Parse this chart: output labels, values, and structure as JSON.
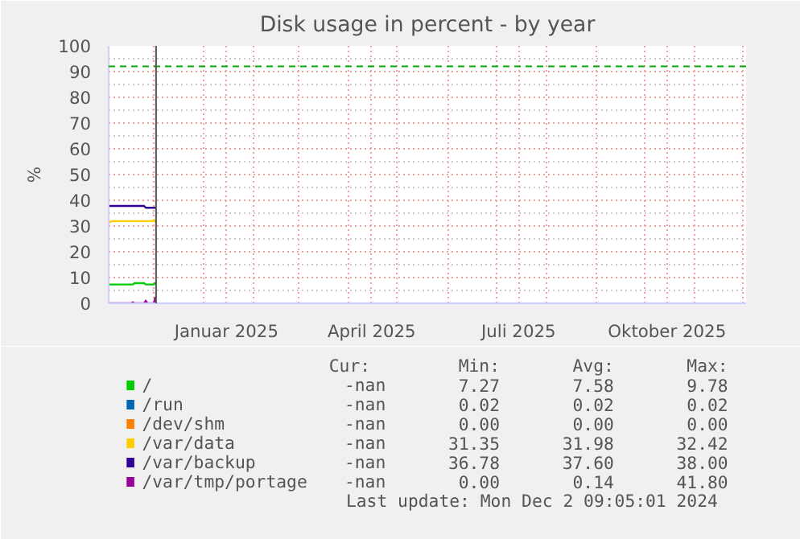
{
  "chart_data": {
    "type": "line",
    "title": "Disk usage in percent - by year",
    "ylabel": "%",
    "xlim": [
      "2024-11-03",
      "2025-12-03"
    ],
    "xticks": [
      {
        "value": "2024-12-01",
        "label": null
      },
      {
        "value": "2025-01-01",
        "label": null
      },
      {
        "value": "2025-01-15",
        "label": "Januar 2025"
      },
      {
        "value": "2025-02-01",
        "label": null
      },
      {
        "value": "2025-03-01",
        "label": null
      },
      {
        "value": "2025-04-01",
        "label": null
      },
      {
        "value": "2025-04-15",
        "label": "April 2025"
      },
      {
        "value": "2025-05-01",
        "label": null
      },
      {
        "value": "2025-06-01",
        "label": null
      },
      {
        "value": "2025-07-01",
        "label": null
      },
      {
        "value": "2025-07-15",
        "label": "Juli 2025"
      },
      {
        "value": "2025-08-01",
        "label": null
      },
      {
        "value": "2025-09-01",
        "label": null
      },
      {
        "value": "2025-10-01",
        "label": null
      },
      {
        "value": "2025-10-15",
        "label": "Oktober 2025"
      },
      {
        "value": "2025-11-01",
        "label": null
      },
      {
        "value": "2025-12-01",
        "label": null
      }
    ],
    "ylim": [
      0,
      100
    ],
    "yticks": [
      0,
      10,
      20,
      30,
      40,
      50,
      60,
      70,
      80,
      90,
      100
    ],
    "grid": true,
    "legend": "bottom",
    "series": [
      {
        "name": "/",
        "color": "#00cc00",
        "x": [
          "2024-11-03",
          "2024-11-18",
          "2024-11-19",
          "2024-11-25",
          "2024-11-26",
          "2024-12-01",
          "2024-12-02"
        ],
        "values": [
          7.3,
          7.3,
          7.8,
          7.8,
          7.3,
          7.3,
          8.0
        ]
      },
      {
        "name": "/run",
        "color": "#0066b3"
      },
      {
        "name": "/dev/shm",
        "color": "#ff8000"
      },
      {
        "name": "/var/data",
        "color": "#ffcc00",
        "x": [
          "2024-11-03",
          "2024-11-05",
          "2024-11-30",
          "2024-12-01",
          "2024-12-02"
        ],
        "values": [
          31.3,
          31.9,
          31.9,
          32.4,
          31.5
        ]
      },
      {
        "name": "/var/backup",
        "color": "#330099",
        "x": [
          "2024-11-03",
          "2024-11-25",
          "2024-11-26",
          "2024-12-02"
        ],
        "values": [
          37.8,
          37.8,
          37.1,
          37.1
        ]
      },
      {
        "name": "/var/tmp/portage",
        "color": "#990099",
        "x": [
          "2024-11-03",
          "2024-11-17",
          "2024-11-18",
          "2024-11-19",
          "2024-11-25",
          "2024-11-26",
          "2024-11-27",
          "2024-12-01",
          "2024-12-02"
        ],
        "values": [
          0,
          0,
          0.4,
          0,
          0,
          1.0,
          0,
          0,
          2.5
        ]
      }
    ],
    "ref_lines": [
      {
        "axis": "y",
        "value": 92,
        "color": "#00aa00",
        "line_style": "dashed"
      },
      {
        "axis": "x",
        "value": "2024-12-02T09:05",
        "color": "#555555",
        "line_style": "solid"
      }
    ],
    "annotations": [
      "Cur:",
      "Min:",
      "Avg:",
      "Max:",
      "-nan",
      "7.27",
      "7.58",
      "9.78",
      "-nan",
      "0.02",
      "0.02",
      "0.02",
      "-nan",
      "0.00",
      "0.00",
      "0.00",
      "-nan",
      "31.35",
      "31.98",
      "32.42",
      "-nan",
      "36.78",
      "37.60",
      "38.00",
      "-nan",
      "0.00",
      "0.14",
      "41.80",
      "Last update: Mon Dec  2 09:05:01 2024"
    ]
  }
}
